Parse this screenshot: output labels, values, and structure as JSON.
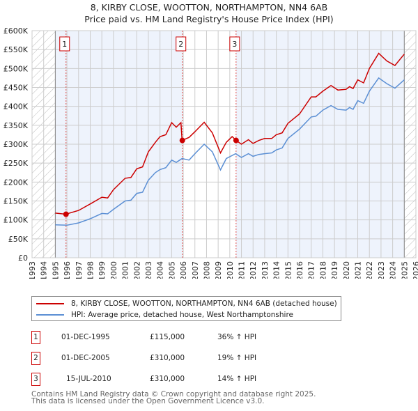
{
  "title": "8, KIRBY CLOSE, WOOTTON, NORTHAMPTON, NN4 6AB",
  "subtitle": "Price paid vs. HM Land Registry's House Price Index (HPI)",
  "colors": {
    "property": "#cc0000",
    "hpi": "#5b8fd4",
    "shade": "#eef3fc"
  },
  "chart_data": {
    "type": "line",
    "title": "8, KIRBY CLOSE, WOOTTON, NORTHAMPTON, NN4 6AB",
    "xlim": [
      1993,
      2026
    ],
    "ylim": [
      0,
      600000
    ],
    "x_ticks": [
      "1993",
      "1994",
      "1995",
      "1996",
      "1997",
      "1998",
      "1999",
      "2000",
      "2001",
      "2002",
      "2003",
      "2004",
      "2005",
      "2006",
      "2007",
      "2008",
      "2009",
      "2010",
      "2011",
      "2012",
      "2013",
      "2014",
      "2015",
      "2016",
      "2017",
      "2018",
      "2019",
      "2020",
      "2021",
      "2022",
      "2023",
      "2024",
      "2025",
      "2026"
    ],
    "y_ticks": [
      {
        "v": 0,
        "l": "£0"
      },
      {
        "v": 50000,
        "l": "£50K"
      },
      {
        "v": 100000,
        "l": "£100K"
      },
      {
        "v": 150000,
        "l": "£150K"
      },
      {
        "v": 200000,
        "l": "£200K"
      },
      {
        "v": 250000,
        "l": "£250K"
      },
      {
        "v": 300000,
        "l": "£300K"
      },
      {
        "v": 350000,
        "l": "£350K"
      },
      {
        "v": 400000,
        "l": "£400K"
      },
      {
        "v": 450000,
        "l": "£450K"
      },
      {
        "v": 500000,
        "l": "£500K"
      },
      {
        "v": 550000,
        "l": "£550K"
      },
      {
        "v": 600000,
        "l": "£600K"
      }
    ],
    "data_range": [
      1995,
      2025
    ],
    "series": [
      {
        "name": "8, KIRBY CLOSE, WOOTTON, NORTHAMPTON, NN4 6AB (detached house)",
        "color": "#cc0000",
        "points": [
          [
            1995,
            118000
          ],
          [
            1995.9,
            115000
          ],
          [
            1997,
            125000
          ],
          [
            1998,
            142000
          ],
          [
            1999,
            160000
          ],
          [
            1999.5,
            158000
          ],
          [
            2000,
            180000
          ],
          [
            2001,
            210000
          ],
          [
            2001.5,
            212000
          ],
          [
            2002,
            235000
          ],
          [
            2002.5,
            240000
          ],
          [
            2003,
            280000
          ],
          [
            2003.6,
            305000
          ],
          [
            2004,
            320000
          ],
          [
            2004.5,
            325000
          ],
          [
            2005,
            357000
          ],
          [
            2005.4,
            345000
          ],
          [
            2005.8,
            357000
          ],
          [
            2005.9,
            310000
          ],
          [
            2006.5,
            318000
          ],
          [
            2007,
            333000
          ],
          [
            2007.8,
            358000
          ],
          [
            2008.5,
            330000
          ],
          [
            2009.2,
            277000
          ],
          [
            2009.7,
            305000
          ],
          [
            2010.2,
            320000
          ],
          [
            2010.55,
            310000
          ],
          [
            2011,
            300000
          ],
          [
            2011.6,
            312000
          ],
          [
            2012,
            302000
          ],
          [
            2012.5,
            310000
          ],
          [
            2013,
            315000
          ],
          [
            2013.6,
            315000
          ],
          [
            2014,
            325000
          ],
          [
            2014.5,
            330000
          ],
          [
            2015,
            355000
          ],
          [
            2016,
            380000
          ],
          [
            2017,
            425000
          ],
          [
            2017.4,
            425000
          ],
          [
            2018,
            440000
          ],
          [
            2018.7,
            455000
          ],
          [
            2019.3,
            443000
          ],
          [
            2020,
            445000
          ],
          [
            2020.3,
            452000
          ],
          [
            2020.6,
            447000
          ],
          [
            2021,
            470000
          ],
          [
            2021.5,
            462000
          ],
          [
            2022,
            500000
          ],
          [
            2022.8,
            540000
          ],
          [
            2023.5,
            520000
          ],
          [
            2024.2,
            508000
          ],
          [
            2025,
            538000
          ]
        ]
      },
      {
        "name": "HPI: Average price, detached house, West Northamptonshire",
        "color": "#5b8fd4",
        "points": [
          [
            1995,
            87000
          ],
          [
            1996,
            86000
          ],
          [
            1997,
            92000
          ],
          [
            1998,
            103000
          ],
          [
            1999,
            117000
          ],
          [
            1999.5,
            116000
          ],
          [
            2000,
            128000
          ],
          [
            2001,
            150000
          ],
          [
            2001.5,
            152000
          ],
          [
            2002,
            170000
          ],
          [
            2002.5,
            173000
          ],
          [
            2003,
            205000
          ],
          [
            2003.6,
            225000
          ],
          [
            2004,
            233000
          ],
          [
            2004.5,
            238000
          ],
          [
            2005,
            258000
          ],
          [
            2005.4,
            252000
          ],
          [
            2005.9,
            262000
          ],
          [
            2006.5,
            258000
          ],
          [
            2007,
            275000
          ],
          [
            2007.8,
            300000
          ],
          [
            2008.5,
            280000
          ],
          [
            2009.2,
            232000
          ],
          [
            2009.7,
            262000
          ],
          [
            2010.5,
            275000
          ],
          [
            2011,
            265000
          ],
          [
            2011.6,
            275000
          ],
          [
            2012,
            268000
          ],
          [
            2012.5,
            273000
          ],
          [
            2013,
            275000
          ],
          [
            2013.6,
            277000
          ],
          [
            2014,
            285000
          ],
          [
            2014.5,
            290000
          ],
          [
            2015,
            315000
          ],
          [
            2016,
            340000
          ],
          [
            2017,
            372000
          ],
          [
            2017.4,
            374000
          ],
          [
            2018,
            390000
          ],
          [
            2018.7,
            402000
          ],
          [
            2019.3,
            392000
          ],
          [
            2020,
            390000
          ],
          [
            2020.3,
            397000
          ],
          [
            2020.6,
            392000
          ],
          [
            2021,
            415000
          ],
          [
            2021.5,
            408000
          ],
          [
            2022,
            440000
          ],
          [
            2022.8,
            475000
          ],
          [
            2023.5,
            460000
          ],
          [
            2024.2,
            448000
          ],
          [
            2025,
            470000
          ]
        ]
      }
    ],
    "annotations": [
      {
        "label": "1",
        "x": 1995.92,
        "y": 115000
      },
      {
        "label": "2",
        "x": 2005.92,
        "y": 310000
      },
      {
        "label": "3",
        "x": 2010.54,
        "y": 310000
      }
    ]
  },
  "legend": {
    "property": "8, KIRBY CLOSE, WOOTTON, NORTHAMPTON, NN4 6AB (detached house)",
    "hpi": "HPI: Average price, detached house, West Northamptonshire"
  },
  "transactions": [
    {
      "num": "1",
      "date": "01-DEC-1995",
      "price": "£115,000",
      "hpi": "36% ↑ HPI"
    },
    {
      "num": "2",
      "date": "01-DEC-2005",
      "price": "£310,000",
      "hpi": "19% ↑ HPI"
    },
    {
      "num": "3",
      "date": "15-JUL-2010",
      "price": "£310,000",
      "hpi": "14% ↑ HPI"
    }
  ],
  "footer": {
    "line1": "Contains HM Land Registry data © Crown copyright and database right 2025.",
    "line2": "This data is licensed under the Open Government Licence v3.0."
  }
}
